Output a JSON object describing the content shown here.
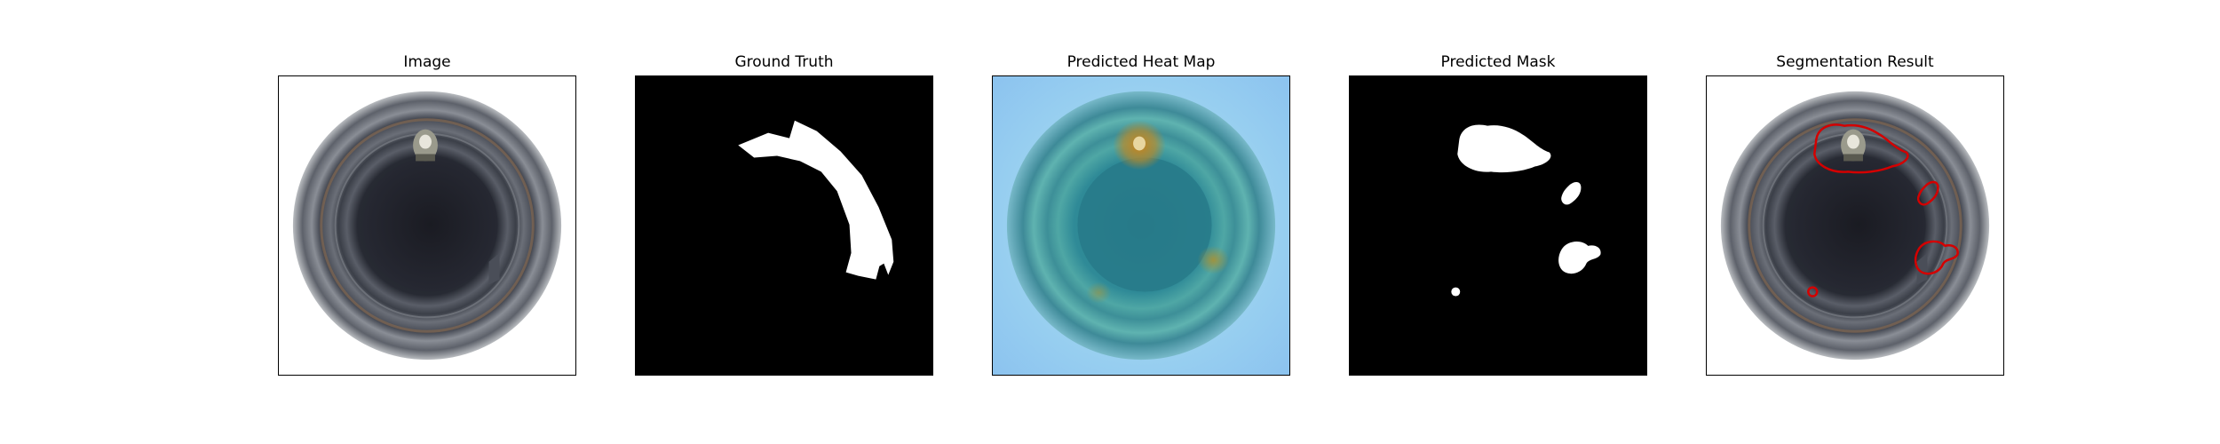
{
  "panels": [
    {
      "title": "Image"
    },
    {
      "title": "Ground Truth"
    },
    {
      "title": "Predicted Heat Map"
    },
    {
      "title": "Predicted Mask"
    },
    {
      "title": "Segmentation Result"
    }
  ],
  "colors": {
    "background": "#ffffff",
    "mask_foreground": "#ffffff",
    "mask_background": "#000000",
    "contour": "#d40000",
    "heatmap_low": "#8ecbf0",
    "heatmap_high": "#c9821a"
  }
}
